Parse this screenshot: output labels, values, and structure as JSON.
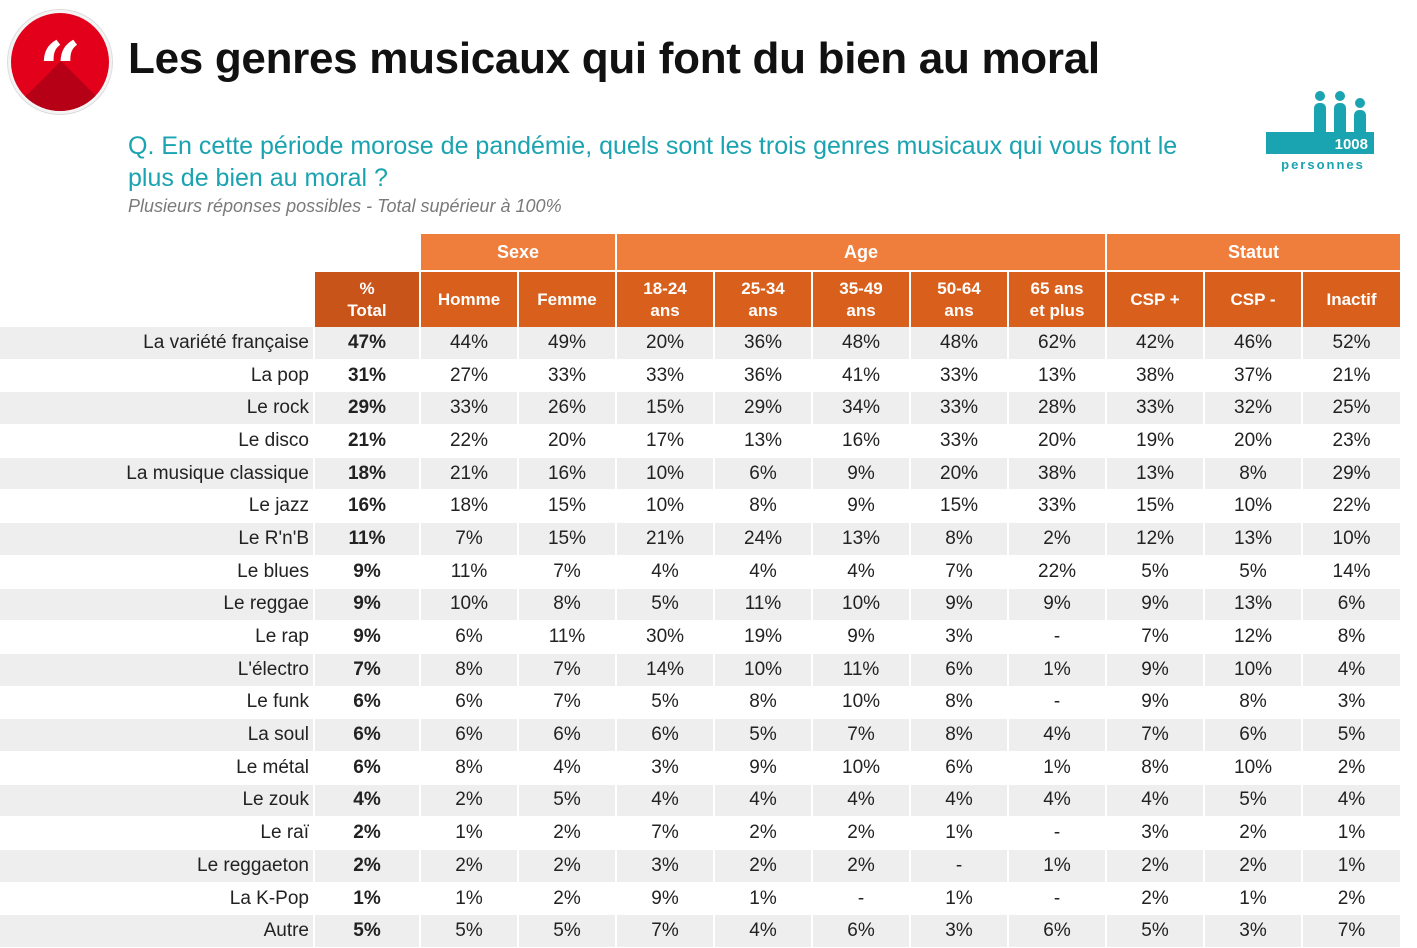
{
  "header": {
    "title": "Les genres musicaux qui font du bien au moral",
    "question": "Q. En cette période morose de pandémie, quels sont les trois genres musicaux qui vous font le plus de bien au moral ?",
    "note": "Plusieurs réponses possibles - Total supérieur à 100%",
    "sample_count": "1008",
    "sample_label": "personnes",
    "quote_icon": "quote-icon",
    "people_icon": "people-icon"
  },
  "colors": {
    "group_header": "#ef7d3c",
    "sub_header": "#d9601c",
    "total_header": "#c8541a",
    "accent": "#1aa3b0",
    "badge": "#e2001a",
    "stripe": "#eeeeee"
  },
  "chart_data": {
    "type": "table",
    "title": "Les genres musicaux qui font du bien au moral",
    "groups": [
      {
        "name": "",
        "span": 2
      },
      {
        "name": "Sexe",
        "span": 2
      },
      {
        "name": "Age",
        "span": 5
      },
      {
        "name": "Statut",
        "span": 3
      }
    ],
    "columns": [
      {
        "line1": "",
        "line2": ""
      },
      {
        "line1": "%",
        "line2": "Total"
      },
      {
        "line1": "Homme",
        "line2": ""
      },
      {
        "line1": "Femme",
        "line2": ""
      },
      {
        "line1": "18-24",
        "line2": "ans"
      },
      {
        "line1": "25-34",
        "line2": "ans"
      },
      {
        "line1": "35-49",
        "line2": "ans"
      },
      {
        "line1": "50-64",
        "line2": "ans"
      },
      {
        "line1": "65 ans",
        "line2": "et plus"
      },
      {
        "line1": "CSP +",
        "line2": ""
      },
      {
        "line1": "CSP -",
        "line2": ""
      },
      {
        "line1": "Inactif",
        "line2": ""
      }
    ],
    "rows": [
      {
        "label": "La variété française",
        "total": "47%",
        "values": [
          "44%",
          "49%",
          "20%",
          "36%",
          "48%",
          "48%",
          "62%",
          "42%",
          "46%",
          "52%"
        ]
      },
      {
        "label": "La pop",
        "total": "31%",
        "values": [
          "27%",
          "33%",
          "33%",
          "36%",
          "41%",
          "33%",
          "13%",
          "38%",
          "37%",
          "21%"
        ]
      },
      {
        "label": "Le rock",
        "total": "29%",
        "values": [
          "33%",
          "26%",
          "15%",
          "29%",
          "34%",
          "33%",
          "28%",
          "33%",
          "32%",
          "25%"
        ]
      },
      {
        "label": "Le disco",
        "total": "21%",
        "values": [
          "22%",
          "20%",
          "17%",
          "13%",
          "16%",
          "33%",
          "20%",
          "19%",
          "20%",
          "23%"
        ]
      },
      {
        "label": "La musique classique",
        "total": "18%",
        "values": [
          "21%",
          "16%",
          "10%",
          "6%",
          "9%",
          "20%",
          "38%",
          "13%",
          "8%",
          "29%"
        ]
      },
      {
        "label": "Le jazz",
        "total": "16%",
        "values": [
          "18%",
          "15%",
          "10%",
          "8%",
          "9%",
          "15%",
          "33%",
          "15%",
          "10%",
          "22%"
        ]
      },
      {
        "label": "Le R'n'B",
        "total": "11%",
        "values": [
          "7%",
          "15%",
          "21%",
          "24%",
          "13%",
          "8%",
          "2%",
          "12%",
          "13%",
          "10%"
        ]
      },
      {
        "label": "Le blues",
        "total": "9%",
        "values": [
          "11%",
          "7%",
          "4%",
          "4%",
          "4%",
          "7%",
          "22%",
          "5%",
          "5%",
          "14%"
        ]
      },
      {
        "label": "Le reggae",
        "total": "9%",
        "values": [
          "10%",
          "8%",
          "5%",
          "11%",
          "10%",
          "9%",
          "9%",
          "9%",
          "13%",
          "6%"
        ]
      },
      {
        "label": "Le rap",
        "total": "9%",
        "values": [
          "6%",
          "11%",
          "30%",
          "19%",
          "9%",
          "3%",
          "-",
          "7%",
          "12%",
          "8%"
        ]
      },
      {
        "label": "L'électro",
        "total": "7%",
        "values": [
          "8%",
          "7%",
          "14%",
          "10%",
          "11%",
          "6%",
          "1%",
          "9%",
          "10%",
          "4%"
        ]
      },
      {
        "label": "Le funk",
        "total": "6%",
        "values": [
          "6%",
          "7%",
          "5%",
          "8%",
          "10%",
          "8%",
          "-",
          "9%",
          "8%",
          "3%"
        ]
      },
      {
        "label": "La soul",
        "total": "6%",
        "values": [
          "6%",
          "6%",
          "6%",
          "5%",
          "7%",
          "8%",
          "4%",
          "7%",
          "6%",
          "5%"
        ]
      },
      {
        "label": "Le métal",
        "total": "6%",
        "values": [
          "8%",
          "4%",
          "3%",
          "9%",
          "10%",
          "6%",
          "1%",
          "8%",
          "10%",
          "2%"
        ]
      },
      {
        "label": "Le zouk",
        "total": "4%",
        "values": [
          "2%",
          "5%",
          "4%",
          "4%",
          "4%",
          "4%",
          "4%",
          "4%",
          "5%",
          "4%"
        ]
      },
      {
        "label": "Le raï",
        "total": "2%",
        "values": [
          "1%",
          "2%",
          "7%",
          "2%",
          "2%",
          "1%",
          "-",
          "3%",
          "2%",
          "1%"
        ]
      },
      {
        "label": "Le reggaeton",
        "total": "2%",
        "values": [
          "2%",
          "2%",
          "3%",
          "2%",
          "2%",
          "-",
          "1%",
          "2%",
          "2%",
          "1%"
        ]
      },
      {
        "label": "La K-Pop",
        "total": "1%",
        "values": [
          "1%",
          "2%",
          "9%",
          "1%",
          "-",
          "1%",
          "-",
          "2%",
          "1%",
          "2%"
        ]
      },
      {
        "label": "Autre",
        "total": "5%",
        "values": [
          "5%",
          "5%",
          "7%",
          "4%",
          "6%",
          "3%",
          "6%",
          "5%",
          "3%",
          "7%"
        ]
      }
    ]
  }
}
